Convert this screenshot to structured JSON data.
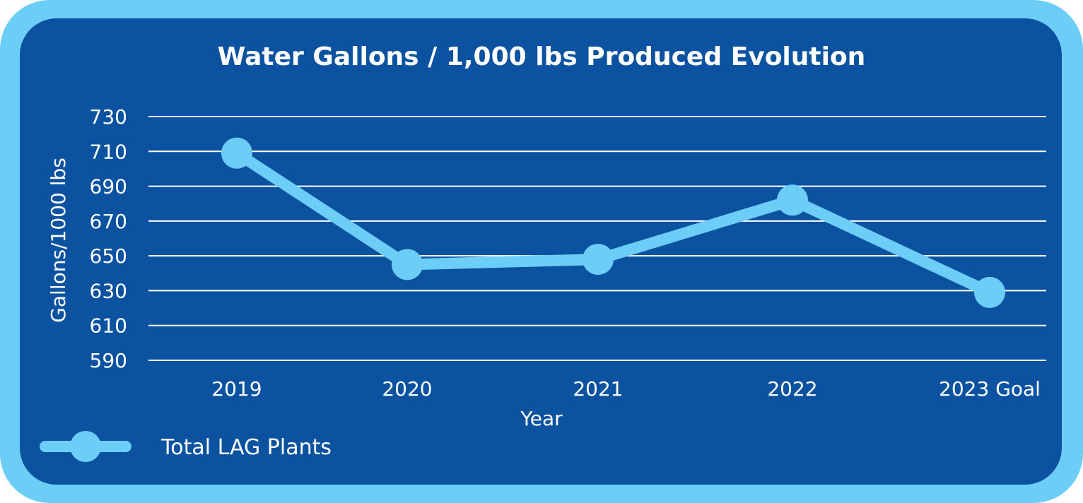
{
  "colors": {
    "frame": "#6ccdf6",
    "panel": "#0b53a1",
    "series": "#6ccdf6",
    "grid": "#ffffff",
    "text": "#ffffff"
  },
  "chart_data": {
    "type": "line",
    "title": "Water Gallons / 1,000 lbs Produced Evolution",
    "xlabel": "Year",
    "ylabel": "Gallons/1000 lbs",
    "categories": [
      "2019",
      "2020",
      "2021",
      "2022",
      "2023 Goal"
    ],
    "y_ticks": [
      590,
      610,
      630,
      650,
      670,
      690,
      710,
      730
    ],
    "ylim": [
      590,
      730
    ],
    "grid": "horizontal",
    "legend_position": "bottom-left",
    "series": [
      {
        "name": "Total LAG Plants",
        "values": [
          709,
          645,
          648,
          682,
          629
        ]
      }
    ]
  }
}
